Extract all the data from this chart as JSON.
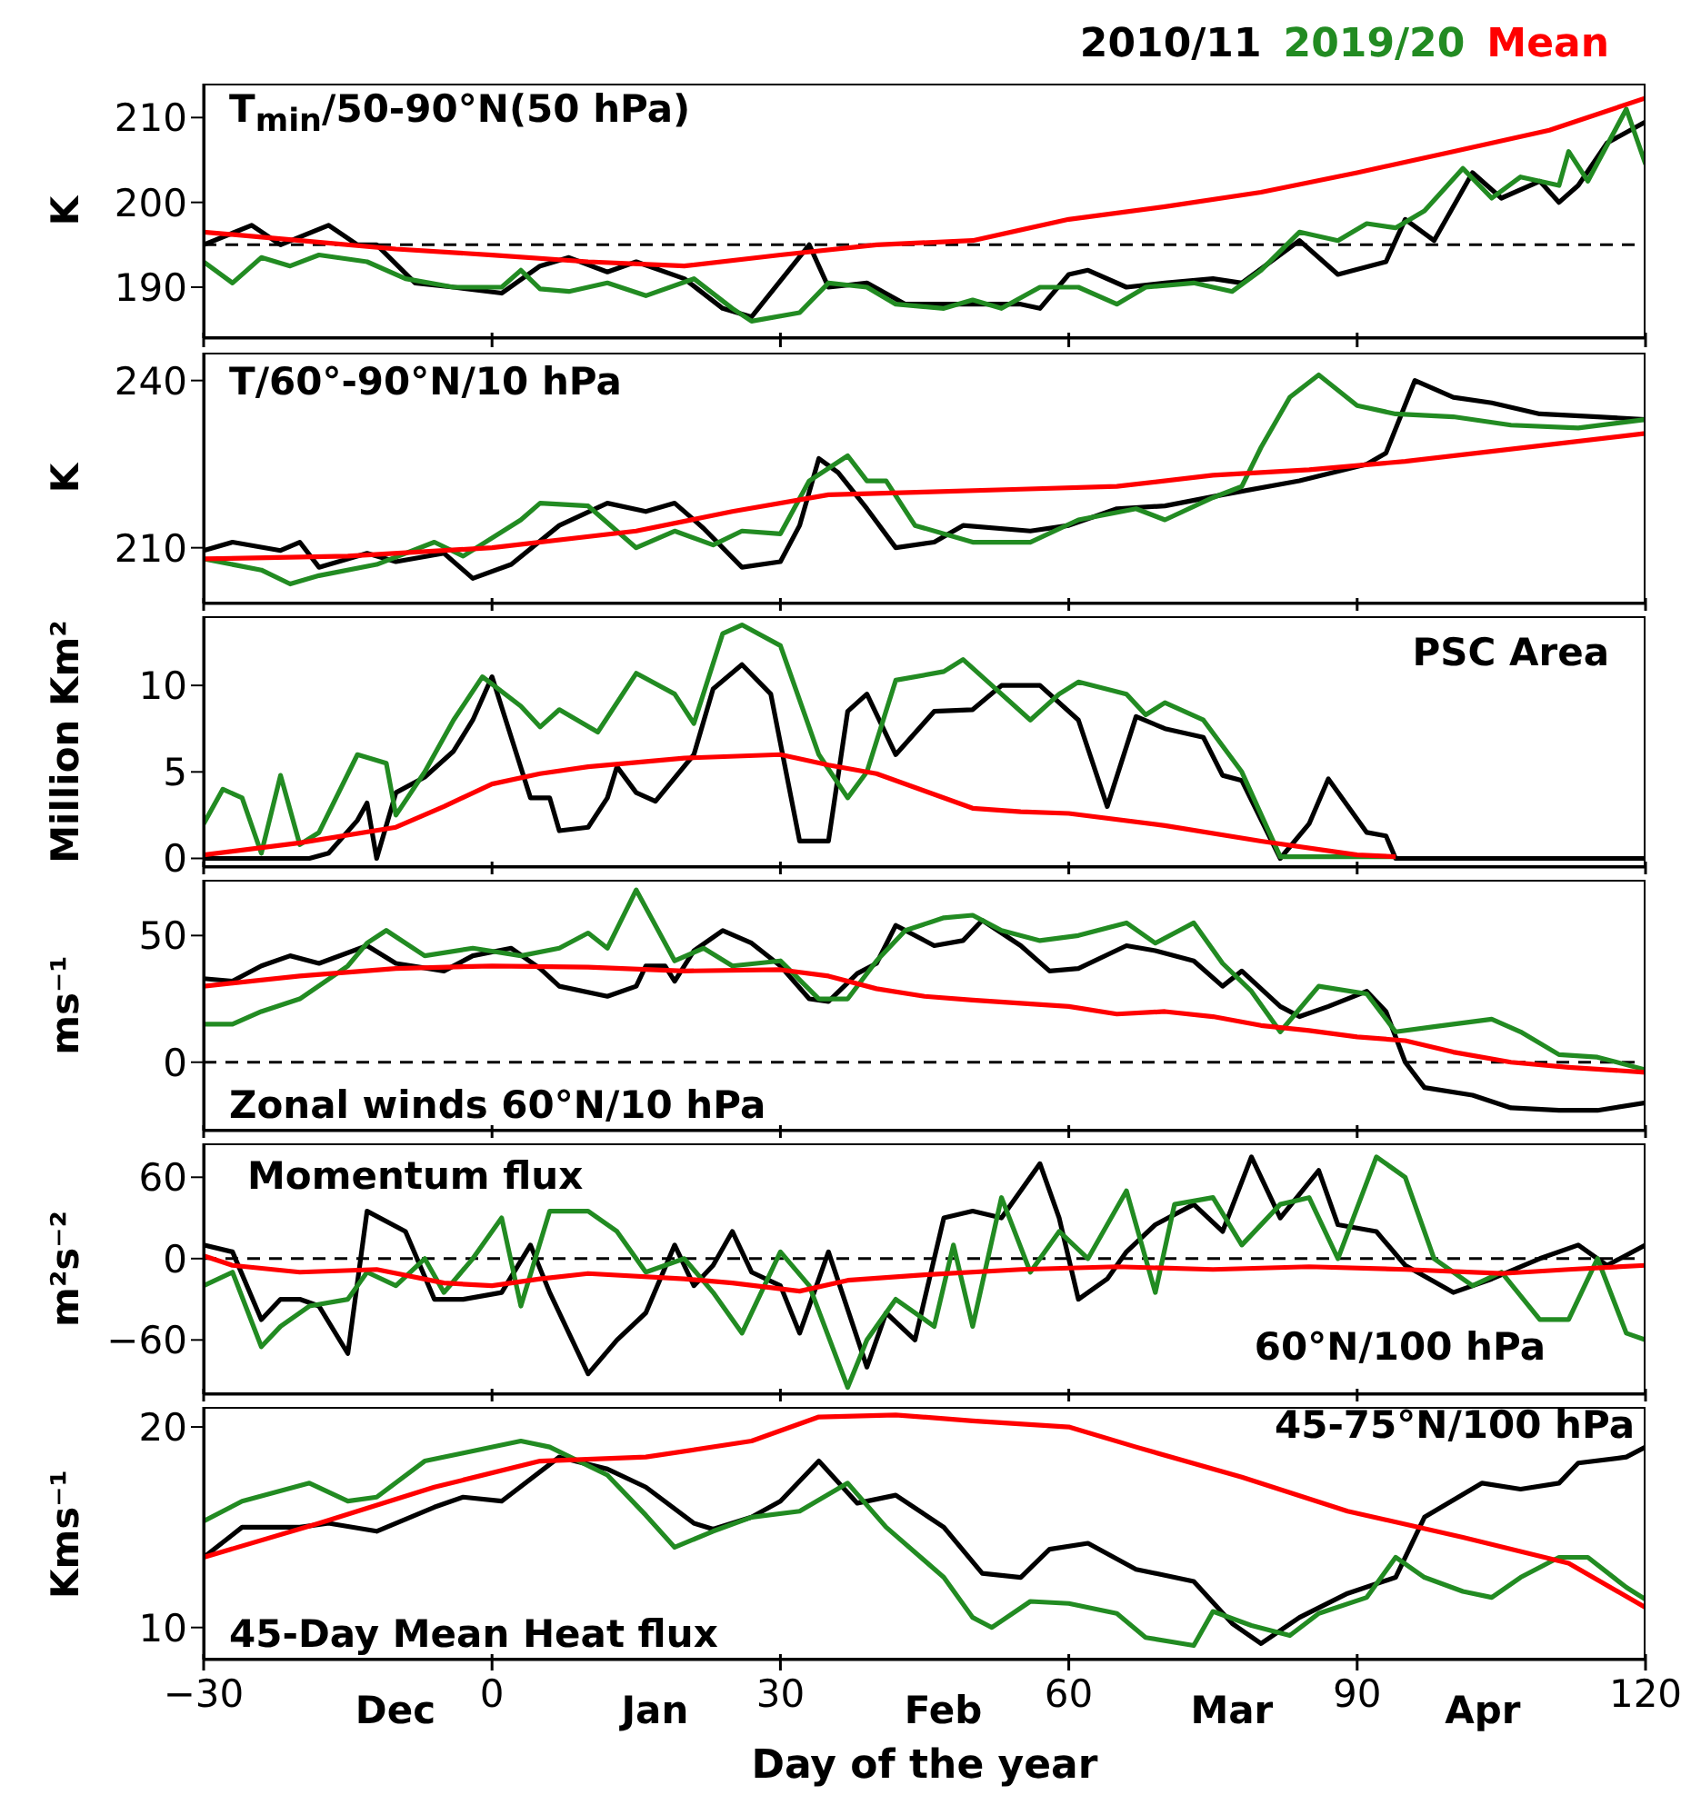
{
  "chart_data": [
    {
      "type": "line",
      "ylabel": "K",
      "annotations": [
        "T$_{min}$/50-90°N(50 hPa)"
      ],
      "legend": "top right",
      "tick_labels": "y",
      "xlim": [
        -30,
        120
      ],
      "xticks": [
        {
          "value": -30,
          "label": null
        },
        {
          "value": 0,
          "label": null
        },
        {
          "value": 30,
          "label": null
        },
        {
          "value": 60,
          "label": null
        },
        {
          "value": 90,
          "label": null
        },
        {
          "value": 120,
          "label": null
        }
      ],
      "ylim": [
        184,
        214
      ],
      "yticks": [
        190,
        200,
        210
      ],
      "ref_lines": [
        {
          "axis": "y",
          "value": 195,
          "color": "#000000",
          "line_style": "dashed"
        }
      ],
      "series": [
        {
          "name": "2010/11",
          "color": "#000000",
          "x": [
            -30,
            -25,
            -22,
            -17,
            -14,
            -12,
            -8,
            -4,
            1,
            5,
            8,
            12,
            15,
            20,
            24,
            27,
            33,
            35,
            39,
            43,
            48,
            55,
            57,
            60,
            62,
            66,
            70,
            75,
            78,
            84,
            88,
            93,
            95,
            98,
            102,
            105,
            109,
            111,
            113,
            116,
            120
          ],
          "values": [
            195,
            197.3,
            195,
            197.3,
            195,
            195,
            190.5,
            190,
            189.3,
            192.5,
            193.5,
            191.8,
            193,
            191,
            187.5,
            186.5,
            195,
            190,
            190.5,
            188,
            188,
            188,
            187.5,
            191.5,
            192,
            190,
            190.5,
            191,
            190.5,
            195.5,
            191.5,
            193,
            198,
            195.5,
            203.5,
            200.5,
            202.5,
            200,
            202,
            207,
            209.5
          ]
        },
        {
          "name": "2019/20",
          "color": "#228b22",
          "x": [
            -30,
            -27,
            -24,
            -21,
            -18,
            -13,
            -9,
            -4,
            1,
            3,
            5,
            8,
            12,
            16,
            21,
            25,
            27,
            32,
            35,
            39,
            42,
            47,
            50,
            53,
            57,
            61,
            65,
            68,
            73,
            77,
            80,
            84,
            88,
            91,
            94,
            97,
            101,
            104,
            107,
            111,
            112,
            114,
            118,
            120
          ],
          "values": [
            193,
            190.5,
            193.5,
            192.5,
            193.8,
            193,
            191,
            190,
            190,
            192,
            189.8,
            189.5,
            190.5,
            189,
            191,
            187.5,
            186,
            187,
            190.5,
            190,
            188,
            187.5,
            188.5,
            187.5,
            190,
            190,
            188,
            190,
            190.5,
            189.5,
            192,
            196.5,
            195.5,
            197.5,
            197,
            199,
            204,
            200.5,
            203,
            202,
            206,
            202.5,
            211,
            204.5
          ]
        },
        {
          "name": "Mean",
          "color": "#ff0000",
          "x": [
            -30,
            -20,
            -10,
            0,
            10,
            20,
            30,
            40,
            50,
            60,
            70,
            80,
            90,
            100,
            110,
            120
          ],
          "values": [
            196.5,
            195.5,
            194.5,
            193.8,
            193,
            192.5,
            193.8,
            195,
            195.5,
            198,
            199.5,
            201.2,
            203.5,
            206,
            208.5,
            212.3
          ]
        }
      ]
    },
    {
      "type": "line",
      "ylabel": "K",
      "annotations": [
        "T/60°-90°N/10 hPa"
      ],
      "tick_labels": "y",
      "xlim": [
        -30,
        120
      ],
      "xticks": [
        {
          "value": -30,
          "label": null
        },
        {
          "value": 0,
          "label": null
        },
        {
          "value": 30,
          "label": null
        },
        {
          "value": 60,
          "label": null
        },
        {
          "value": 90,
          "label": null
        },
        {
          "value": 120,
          "label": null
        }
      ],
      "ylim": [
        200,
        245
      ],
      "yticks": [
        210,
        240
      ],
      "series": [
        {
          "color": "#000000",
          "x": [
            -30,
            -27,
            -22,
            -20,
            -18,
            -13,
            -10,
            -5,
            -2,
            2,
            7,
            12,
            16,
            19,
            22,
            26,
            30,
            32,
            34,
            36,
            39,
            42,
            46,
            49,
            56,
            60,
            65,
            70,
            76,
            84,
            91,
            93,
            96,
            100,
            104,
            109,
            115,
            120
          ],
          "values": [
            209.5,
            211,
            209.5,
            211,
            206.5,
            209,
            207.5,
            209,
            204.5,
            207,
            214,
            218,
            216.5,
            218,
            213.5,
            206.5,
            207.5,
            214,
            226,
            223.5,
            217,
            210,
            211,
            214,
            213,
            214,
            217,
            217.5,
            219.5,
            222,
            225,
            227,
            240,
            237,
            236,
            234,
            233.5,
            233
          ]
        },
        {
          "color": "#228b22",
          "x": [
            -30,
            -24,
            -21,
            -18,
            -12,
            -6,
            -3,
            3,
            5,
            10,
            15,
            19,
            23,
            26,
            30,
            33,
            37,
            39,
            41,
            44,
            50,
            56,
            61,
            67,
            70,
            75,
            78,
            80,
            83,
            86,
            90,
            94,
            100,
            106,
            113,
            120
          ],
          "values": [
            208,
            206,
            203.5,
            205,
            207,
            211,
            208.5,
            215,
            218,
            217.5,
            210,
            213,
            210.5,
            213,
            212.5,
            222,
            226.5,
            222,
            222,
            214,
            211,
            211,
            215,
            217,
            215,
            219,
            221,
            228,
            237,
            241,
            235.5,
            234,
            233.5,
            232,
            231.5,
            233
          ]
        },
        {
          "color": "#ff0000",
          "x": [
            -30,
            -15,
            0,
            15,
            25,
            35,
            45,
            55,
            65,
            75,
            85,
            95,
            105,
            120
          ],
          "values": [
            208,
            208.5,
            210,
            213,
            216.5,
            219.5,
            220,
            220.5,
            221,
            223,
            224,
            225.5,
            227.5,
            230.5
          ]
        }
      ]
    },
    {
      "type": "line",
      "ylabel": "Million Km²",
      "annotations": [
        "PSC Area"
      ],
      "tick_labels": "y",
      "xlim": [
        -30,
        120
      ],
      "xticks": [
        {
          "value": -30,
          "label": null
        },
        {
          "value": 0,
          "label": null
        },
        {
          "value": 30,
          "label": null
        },
        {
          "value": 60,
          "label": null
        },
        {
          "value": 90,
          "label": null
        },
        {
          "value": 120,
          "label": null
        }
      ],
      "ylim": [
        -0.5,
        14
      ],
      "yticks": [
        0,
        5,
        10
      ],
      "series": [
        {
          "color": "#000000",
          "x": [
            -30,
            -19,
            -17,
            -14,
            -13,
            -12,
            -10,
            -7,
            -4,
            -2,
            0,
            4,
            6,
            7,
            10,
            12,
            13,
            15,
            17,
            21,
            23,
            26,
            29,
            32,
            34,
            35,
            37,
            39,
            42,
            46,
            50,
            53,
            57,
            61,
            64,
            67,
            70,
            74,
            76,
            78,
            82,
            85,
            87,
            91,
            93,
            94,
            120
          ],
          "values": [
            0,
            0,
            0.3,
            2.2,
            3.2,
            0,
            3.8,
            4.7,
            6.2,
            8,
            10.5,
            3.5,
            3.5,
            1.6,
            1.8,
            3.5,
            5.3,
            3.8,
            3.3,
            6,
            9.8,
            11.2,
            9.5,
            1,
            1,
            1,
            8.5,
            9.5,
            6,
            8.5,
            8.6,
            10,
            10,
            8,
            3,
            8.2,
            7.5,
            7,
            4.8,
            4.5,
            0,
            2,
            4.6,
            1.5,
            1.3,
            0,
            0
          ]
        },
        {
          "color": "#228b22",
          "x": [
            -30,
            -28,
            -26,
            -24,
            -22,
            -20,
            -18,
            -14,
            -11,
            -10,
            -7,
            -4,
            -1,
            3,
            5,
            7,
            11,
            15,
            19,
            21,
            24,
            26,
            30,
            34,
            37,
            39,
            42,
            47,
            49,
            52,
            56,
            59,
            61,
            66,
            68,
            70,
            74,
            78,
            82,
            94
          ],
          "values": [
            2,
            4,
            3.5,
            0.3,
            4.8,
            0.8,
            1.5,
            6,
            5.5,
            2.5,
            5,
            8,
            10.5,
            8.8,
            7.6,
            8.6,
            7.3,
            10.7,
            9.5,
            7.8,
            13,
            13.5,
            12.3,
            6,
            3.5,
            5,
            10.3,
            10.8,
            11.5,
            10,
            8,
            9.5,
            10.2,
            9.5,
            8.3,
            9,
            8,
            5,
            0.1,
            0.1
          ]
        },
        {
          "color": "#ff0000",
          "x": [
            -30,
            -20,
            -10,
            -5,
            0,
            5,
            10,
            20,
            30,
            35,
            40,
            45,
            50,
            55,
            60,
            70,
            80,
            90,
            94
          ],
          "values": [
            0.2,
            0.9,
            1.8,
            3,
            4.3,
            4.9,
            5.3,
            5.8,
            6,
            5.4,
            4.9,
            3.9,
            2.9,
            2.7,
            2.6,
            1.9,
            1,
            0.2,
            0.1
          ]
        }
      ]
    },
    {
      "type": "line",
      "ylabel": "ms⁻¹",
      "annotations": [
        "Zonal winds 60°N/10 hPa"
      ],
      "tick_labels": "y",
      "xlim": [
        -30,
        120
      ],
      "xticks": [
        {
          "value": -30,
          "label": null
        },
        {
          "value": 0,
          "label": null
        },
        {
          "value": 30,
          "label": null
        },
        {
          "value": 60,
          "label": null
        },
        {
          "value": 90,
          "label": null
        },
        {
          "value": 120,
          "label": null
        }
      ],
      "ylim": [
        -27,
        72
      ],
      "yticks": [
        0,
        50
      ],
      "ref_lines": [
        {
          "axis": "y",
          "value": 0,
          "color": "#000000",
          "line_style": "dashed"
        }
      ],
      "series": [
        {
          "color": "#000000",
          "x": [
            -30,
            -27,
            -24,
            -21,
            -18,
            -13,
            -10,
            -5,
            -2,
            2,
            5,
            7,
            12,
            15,
            16,
            18,
            19,
            21,
            24,
            27,
            30,
            33,
            35,
            38,
            40,
            42,
            46,
            49,
            51,
            55,
            58,
            61,
            66,
            69,
            73,
            76,
            78,
            82,
            84,
            87,
            91,
            93,
            95,
            97,
            102,
            106,
            111,
            115,
            120
          ],
          "values": [
            33,
            32,
            38,
            42,
            39,
            46,
            39,
            36,
            42,
            45,
            37,
            30,
            26,
            30,
            38,
            38,
            32,
            44,
            52,
            47,
            38,
            25,
            24,
            35,
            39,
            54,
            46,
            48,
            56,
            46,
            36,
            37,
            46,
            44,
            40,
            30,
            36,
            22,
            18,
            22,
            28,
            20,
            0,
            -10,
            -13,
            -18,
            -19,
            -19,
            -16
          ]
        },
        {
          "color": "#228b22",
          "x": [
            -30,
            -27,
            -24,
            -20,
            -15,
            -13,
            -11,
            -7,
            -2,
            3,
            7,
            10,
            12,
            15,
            19,
            22,
            25,
            30,
            34,
            37,
            40,
            43,
            47,
            50,
            53,
            57,
            61,
            66,
            69,
            73,
            76,
            79,
            82,
            86,
            91,
            94,
            98,
            104,
            107,
            111,
            115,
            120
          ],
          "values": [
            15,
            15,
            20,
            25,
            38,
            47,
            52,
            42,
            45,
            42,
            45,
            51,
            45,
            68,
            40,
            45,
            38,
            40,
            25,
            25,
            40,
            52,
            57,
            58,
            52,
            48,
            50,
            55,
            47,
            55,
            39,
            28,
            12,
            30,
            27,
            12,
            14,
            17,
            12,
            3,
            2,
            -3
          ]
        },
        {
          "color": "#ff0000",
          "x": [
            -30,
            -20,
            -10,
            0,
            10,
            20,
            30,
            35,
            40,
            45,
            50,
            60,
            65,
            70,
            75,
            80,
            85,
            90,
            95,
            100,
            106,
            112,
            120
          ],
          "values": [
            30,
            34,
            37,
            38,
            37.5,
            36,
            36.5,
            34,
            29,
            26,
            24.5,
            22,
            19,
            20,
            18,
            14.5,
            12.5,
            10,
            8.5,
            4,
            0,
            -2,
            -4
          ]
        }
      ]
    },
    {
      "type": "line",
      "ylabel": "m²s⁻²",
      "annotations": [
        "Momentum flux",
        "60°N/100 hPa"
      ],
      "tick_labels": "y",
      "xlim": [
        -30,
        120
      ],
      "xticks": [
        {
          "value": -30,
          "label": null
        },
        {
          "value": 0,
          "label": null
        },
        {
          "value": 30,
          "label": null
        },
        {
          "value": 60,
          "label": null
        },
        {
          "value": 90,
          "label": null
        },
        {
          "value": 120,
          "label": null
        }
      ],
      "ylim": [
        -100,
        85
      ],
      "yticks": [
        {
          "value": -60,
          "label": "−60"
        },
        0,
        60
      ],
      "ref_lines": [
        {
          "axis": "y",
          "value": 0,
          "color": "#000000",
          "line_style": "dashed"
        }
      ],
      "series": [
        {
          "color": "#000000",
          "x": [
            -30,
            -27,
            -24,
            -22,
            -20,
            -18,
            -15,
            -13,
            -9,
            -6,
            -3,
            1,
            4,
            6,
            10,
            13,
            16,
            19,
            21,
            23,
            25,
            27,
            30,
            32,
            35,
            39,
            41,
            44,
            47,
            50,
            53,
            57,
            59,
            61,
            64,
            66,
            69,
            73,
            76,
            79,
            82,
            86,
            88,
            92,
            95,
            100,
            104,
            109,
            113,
            116,
            120
          ],
          "values": [
            10,
            5,
            -45,
            -30,
            -30,
            -35,
            -70,
            35,
            20,
            -30,
            -30,
            -25,
            10,
            -25,
            -85,
            -60,
            -40,
            10,
            -20,
            -5,
            20,
            -10,
            -20,
            -55,
            5,
            -80,
            -40,
            -60,
            30,
            35,
            30,
            70,
            30,
            -30,
            -15,
            5,
            25,
            40,
            20,
            75,
            30,
            65,
            25,
            20,
            -5,
            -25,
            -15,
            0,
            10,
            -5,
            10
          ]
        },
        {
          "color": "#228b22",
          "x": [
            -30,
            -27,
            -24,
            -22,
            -19,
            -15,
            -13,
            -10,
            -7,
            -5,
            -2,
            1,
            3,
            6,
            10,
            13,
            16,
            20,
            23,
            26,
            30,
            33,
            37,
            39,
            42,
            46,
            48,
            50,
            53,
            56,
            59,
            62,
            66,
            69,
            71,
            75,
            78,
            82,
            85,
            88,
            92,
            95,
            98,
            102,
            105,
            109,
            112,
            115,
            118,
            120
          ],
          "values": [
            -20,
            -10,
            -65,
            -50,
            -35,
            -30,
            -10,
            -20,
            0,
            -25,
            0,
            30,
            -35,
            35,
            35,
            20,
            -10,
            0,
            -25,
            -55,
            5,
            -20,
            -95,
            -60,
            -30,
            -50,
            10,
            -50,
            45,
            -10,
            20,
            0,
            50,
            -25,
            40,
            45,
            10,
            40,
            45,
            0,
            75,
            60,
            0,
            -20,
            -10,
            -45,
            -45,
            0,
            -55,
            -60
          ]
        },
        {
          "color": "#ff0000",
          "x": [
            -30,
            -27,
            -20,
            -12,
            -5,
            0,
            5,
            10,
            20,
            25,
            32,
            37,
            45,
            55,
            65,
            75,
            85,
            95,
            105,
            112,
            120
          ],
          "values": [
            2,
            -5,
            -10,
            -8,
            -18,
            -20,
            -15,
            -11,
            -15,
            -18,
            -24,
            -16,
            -12,
            -8,
            -6,
            -8,
            -6,
            -8,
            -11,
            -8,
            -5
          ]
        }
      ]
    },
    {
      "type": "line",
      "ylabel": "Kms⁻¹",
      "xlabel": "Day of the year",
      "annotations": [
        "45-75°N/100 hPa",
        "45-Day Mean Heat flux",
        "Dec",
        "Jan",
        "Feb",
        "Mar",
        "Apr"
      ],
      "xlim": [
        -30,
        120
      ],
      "xticks": [
        {
          "value": -30,
          "label": "−30"
        },
        0,
        30,
        60,
        90,
        120
      ],
      "ylim": [
        8.4,
        21
      ],
      "yticks": [
        10,
        20
      ],
      "series": [
        {
          "color": "#000000",
          "x": [
            -30,
            -26,
            -20,
            -17,
            -12,
            -6,
            -3,
            1,
            7,
            12,
            16,
            21,
            23,
            27,
            30,
            34,
            38,
            42,
            47,
            51,
            55,
            58,
            62,
            67,
            73,
            77,
            80,
            84,
            89,
            94,
            97,
            103,
            107,
            111,
            113,
            118,
            120
          ],
          "values": [
            13.5,
            15,
            15,
            15.2,
            14.8,
            16,
            16.5,
            16.3,
            18.5,
            17.9,
            17,
            15.2,
            14.9,
            15.5,
            16.3,
            18.3,
            16.2,
            16.6,
            15,
            12.7,
            12.5,
            13.9,
            14.2,
            12.9,
            12.3,
            10.2,
            9.2,
            10.5,
            11.7,
            12.5,
            15.5,
            17.2,
            16.9,
            17.2,
            18.2,
            18.5,
            19
          ]
        },
        {
          "color": "#228b22",
          "x": [
            -30,
            -26,
            -19,
            -15,
            -12,
            -7,
            -3,
            3,
            6,
            12,
            16,
            19,
            23,
            27,
            32,
            37,
            41,
            47,
            50,
            52,
            56,
            60,
            65,
            68,
            73,
            75,
            79,
            83,
            86,
            91,
            94,
            97,
            101,
            104,
            107,
            111,
            114,
            118,
            120
          ],
          "values": [
            15.3,
            16.3,
            17.2,
            16.3,
            16.5,
            18.3,
            18.7,
            19.3,
            19,
            17.6,
            15.6,
            14,
            14.8,
            15.5,
            15.8,
            17.2,
            15,
            12.5,
            10.5,
            10,
            11.3,
            11.2,
            10.7,
            9.5,
            9.1,
            10.8,
            10.1,
            9.6,
            10.7,
            11.5,
            13.5,
            12.5,
            11.8,
            11.5,
            12.5,
            13.5,
            13.5,
            12,
            11.4
          ]
        },
        {
          "color": "#ff0000",
          "x": [
            -30,
            -18,
            -6,
            5,
            16,
            27,
            34,
            42,
            50,
            60,
            67,
            78,
            89,
            101,
            112,
            120
          ],
          "values": [
            13.5,
            15.2,
            17,
            18.3,
            18.5,
            19.3,
            20.5,
            20.6,
            20.3,
            20,
            19,
            17.5,
            15.8,
            14.5,
            13.2,
            11
          ]
        }
      ]
    }
  ]
}
